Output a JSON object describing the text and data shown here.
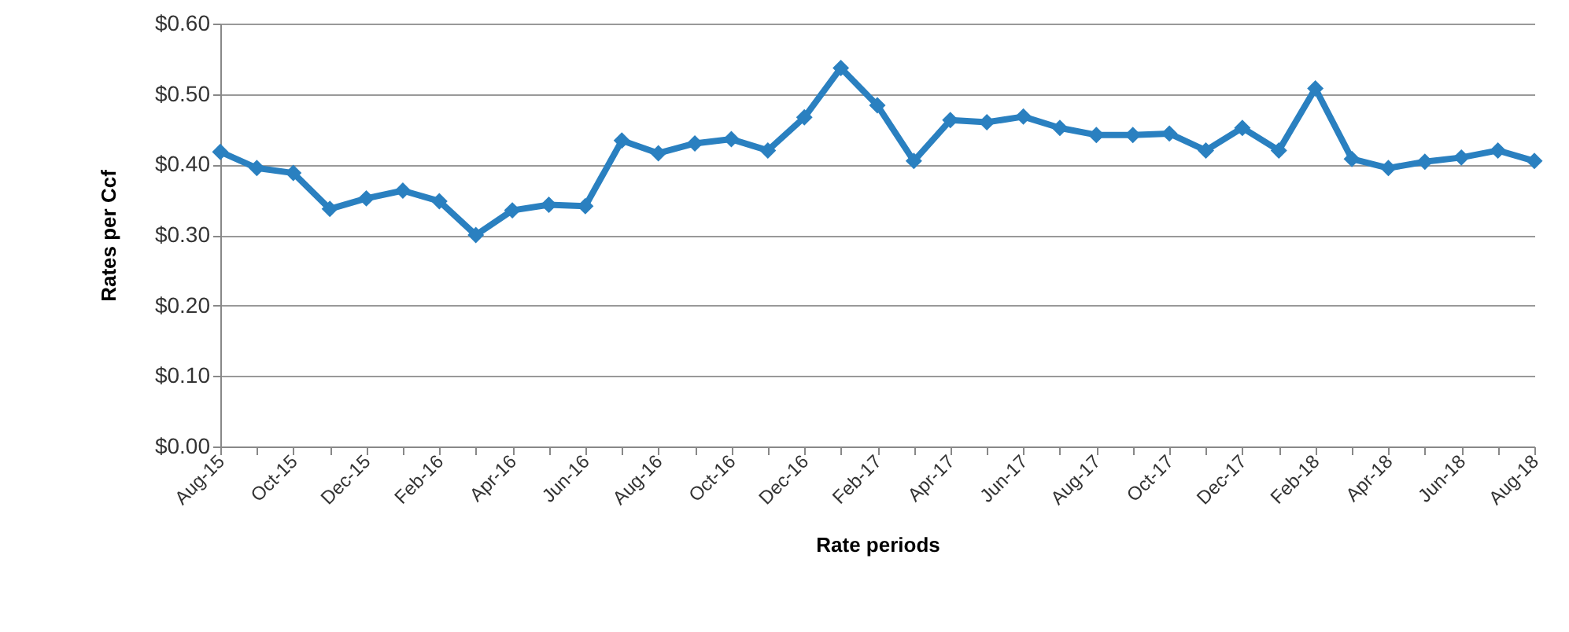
{
  "chart_data": {
    "type": "line",
    "xlabel": "Rate periods",
    "ylabel": "Rates per Ccf",
    "categories": [
      "Aug-15",
      null,
      "Oct-15",
      null,
      "Dec-15",
      null,
      "Feb-16",
      null,
      "Apr-16",
      null,
      "Jun-16",
      null,
      "Aug-16",
      null,
      "Oct-16",
      null,
      "Dec-16",
      null,
      "Feb-17",
      null,
      "Apr-17",
      null,
      "Jun-17",
      null,
      "Aug-17",
      null,
      "Oct-17",
      null,
      "Dec-17",
      null,
      "Feb-18",
      null,
      "Apr-18",
      null,
      "Jun-18",
      null,
      "Aug-18"
    ],
    "series": [
      {
        "color": "#2a80c0",
        "values": [
          0.418,
          0.395,
          0.388,
          0.337,
          0.352,
          0.363,
          0.348,
          0.3,
          0.335,
          0.343,
          0.341,
          0.434,
          0.416,
          0.43,
          0.436,
          0.42,
          0.467,
          0.537,
          0.484,
          0.405,
          0.463,
          0.46,
          0.468,
          0.452,
          0.442,
          0.442,
          0.444,
          0.42,
          0.452,
          0.42,
          0.508,
          0.408,
          0.395,
          0.404,
          0.41,
          0.42,
          0.405
        ]
      }
    ],
    "ylim": [
      0,
      0.6
    ],
    "yticks": [
      {
        "value": 0,
        "label": "$0.00"
      },
      {
        "value": 0.1,
        "label": "$0.10"
      },
      {
        "value": 0.2,
        "label": "$0.20"
      },
      {
        "value": 0.3,
        "label": "$0.30"
      },
      {
        "value": 0.4,
        "label": "$0.40"
      },
      {
        "value": 0.5,
        "label": "$0.50"
      },
      {
        "value": 0.6,
        "label": "$0.60"
      }
    ],
    "grid": "y",
    "marker": "diamond",
    "line_style": "solid",
    "legend": false
  }
}
